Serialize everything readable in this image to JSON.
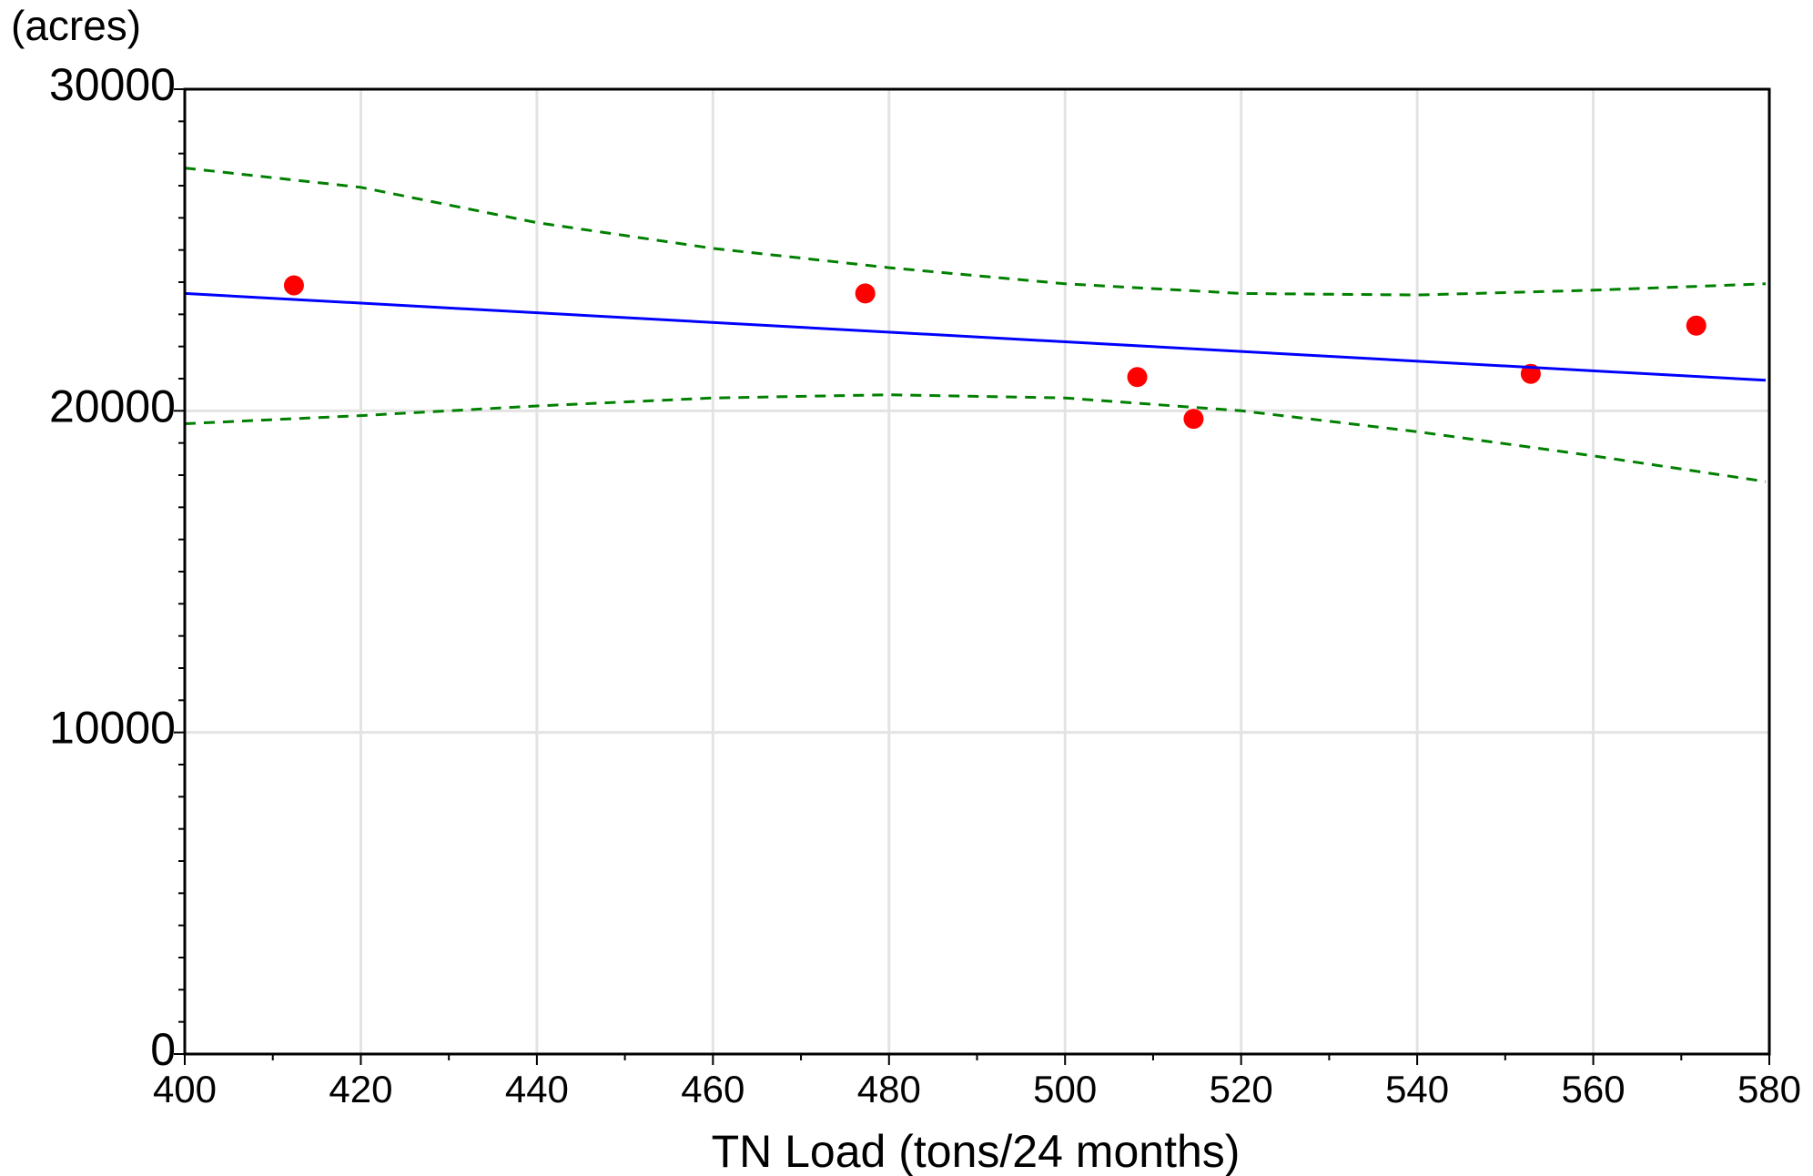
{
  "chart_data": {
    "type": "scatter",
    "title": "",
    "xlabel": "TN Load (tons/24 months)",
    "ylabel": "(acres)",
    "xlim": [
      400,
      580
    ],
    "ylim": [
      0,
      30000
    ],
    "x_ticks": [
      400,
      420,
      440,
      460,
      480,
      500,
      520,
      540,
      560,
      580
    ],
    "y_ticks": [
      0,
      10000,
      20000,
      30000
    ],
    "grid": true,
    "legend": "none",
    "series": [
      {
        "kind": "scatter",
        "color": "#ff0000",
        "points": [
          {
            "x": 412.4,
            "y": 23900
          },
          {
            "x": 477.3,
            "y": 23650
          },
          {
            "x": 508.2,
            "y": 21050
          },
          {
            "x": 514.6,
            "y": 19750
          },
          {
            "x": 552.9,
            "y": 21150
          },
          {
            "x": 571.7,
            "y": 22650
          }
        ]
      },
      {
        "kind": "regression-line",
        "color": "#0000ff",
        "points": [
          {
            "x": 400,
            "y": 23650
          },
          {
            "x": 580,
            "y": 20950
          }
        ]
      },
      {
        "kind": "confidence-upper",
        "color": "#008000",
        "dashed": true,
        "points": [
          {
            "x": 400,
            "y": 27550
          },
          {
            "x": 420,
            "y": 26950
          },
          {
            "x": 440,
            "y": 25850
          },
          {
            "x": 460,
            "y": 25050
          },
          {
            "x": 480,
            "y": 24450
          },
          {
            "x": 500,
            "y": 23950
          },
          {
            "x": 520,
            "y": 23650
          },
          {
            "x": 540,
            "y": 23600
          },
          {
            "x": 560,
            "y": 23750
          },
          {
            "x": 580,
            "y": 23950
          }
        ]
      },
      {
        "kind": "confidence-lower",
        "color": "#008000",
        "dashed": true,
        "points": [
          {
            "x": 400,
            "y": 19600
          },
          {
            "x": 420,
            "y": 19850
          },
          {
            "x": 440,
            "y": 20150
          },
          {
            "x": 460,
            "y": 20400
          },
          {
            "x": 480,
            "y": 20500
          },
          {
            "x": 500,
            "y": 20400
          },
          {
            "x": 520,
            "y": 20000
          },
          {
            "x": 540,
            "y": 19350
          },
          {
            "x": 560,
            "y": 18600
          },
          {
            "x": 580,
            "y": 17800
          }
        ]
      }
    ]
  }
}
